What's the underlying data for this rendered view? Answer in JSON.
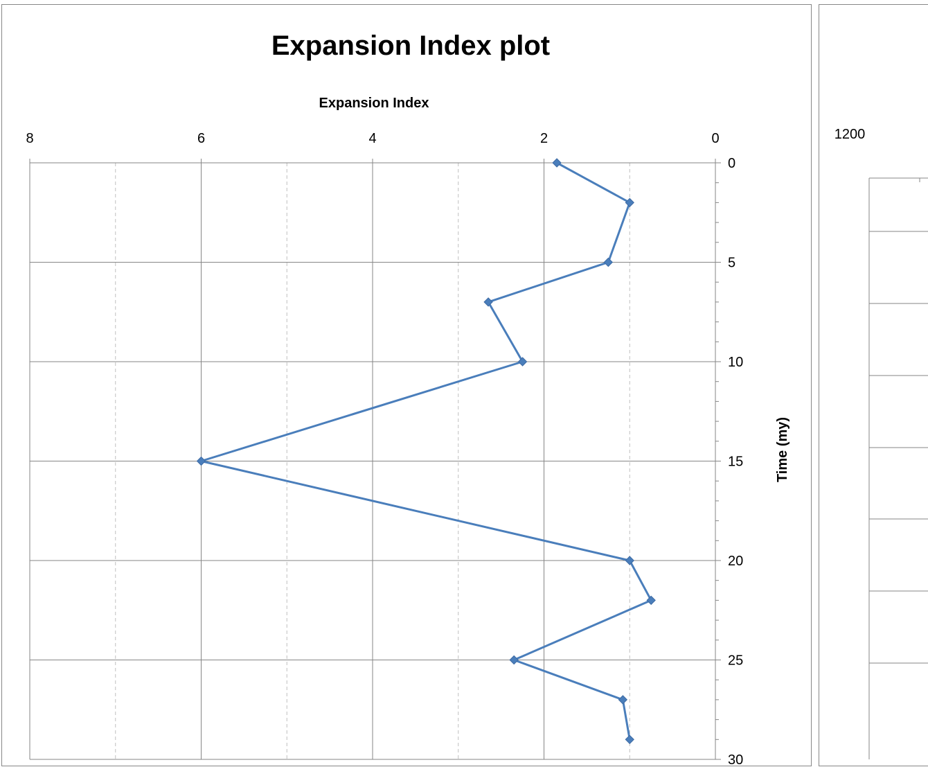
{
  "chart_data": [
    {
      "type": "line",
      "title": "Expansion Index plot",
      "xlabel": "Expansion Index",
      "ylabel": "Time (my)",
      "x_reversed": true,
      "y_reversed": true,
      "xlim": [
        0,
        8
      ],
      "ylim": [
        0,
        30
      ],
      "x_ticks": [
        "8",
        "6",
        "4",
        "2",
        "0"
      ],
      "y_ticks": [
        "0",
        "5",
        "10",
        "15",
        "20",
        "25",
        "30"
      ],
      "grid": true,
      "series": [
        {
          "color": "#4a7ebb",
          "points": [
            {
              "x": 1.85,
              "y": 0
            },
            {
              "x": 1.0,
              "y": 2
            },
            {
              "x": 1.25,
              "y": 5
            },
            {
              "x": 2.65,
              "y": 7
            },
            {
              "x": 2.25,
              "y": 10
            },
            {
              "x": 6.0,
              "y": 15
            },
            {
              "x": 1.0,
              "y": 20
            },
            {
              "x": 0.75,
              "y": 22
            },
            {
              "x": 2.35,
              "y": 25
            },
            {
              "x": 1.08,
              "y": 27
            },
            {
              "x": 1.0,
              "y": 29
            }
          ]
        }
      ]
    },
    {
      "type": "line",
      "x_ticks": [
        "1200"
      ],
      "partial": true
    }
  ]
}
